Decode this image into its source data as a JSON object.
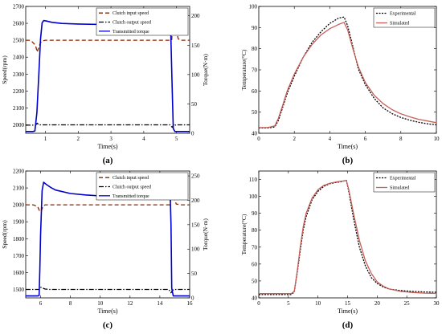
{
  "chart_data": [
    {
      "type": "line",
      "panel_label": "(a)",
      "xlabel": "Time(s)",
      "ylabel": "Speed(rpm)",
      "ylabel_right": "Torque(N·m)",
      "xlim": [
        0.4,
        5.4
      ],
      "ylim": [
        1950,
        2700
      ],
      "ylim_right": [
        0,
        216
      ],
      "xticks": [
        1,
        2,
        3,
        4,
        5
      ],
      "yticks": [
        2000,
        2100,
        2200,
        2300,
        2400,
        2500,
        2600,
        2700
      ],
      "yticks_right": [
        0,
        50,
        100,
        150,
        200
      ],
      "legend_position": "top-right",
      "series": [
        {
          "name": "Clutch input speed",
          "axis": "left",
          "color": "#8b2500",
          "style": "dashed",
          "x": [
            0.4,
            0.5,
            0.6,
            0.7,
            0.75,
            0.8,
            0.85,
            0.9,
            1.0,
            1.2,
            1.5,
            2.0,
            3.0,
            4.0,
            4.7,
            4.85,
            4.9,
            4.95,
            5.0,
            5.05,
            5.1,
            5.2,
            5.4
          ],
          "y": [
            2500,
            2500,
            2490,
            2470,
            2430,
            2460,
            2485,
            2495,
            2500,
            2500,
            2500,
            2500,
            2500,
            2500,
            2500,
            2500,
            2625,
            2590,
            2550,
            2510,
            2500,
            2500,
            2500
          ]
        },
        {
          "name": "Clutch output speed",
          "axis": "left",
          "color": "#000000",
          "style": "dash-dot",
          "x": [
            0.4,
            0.5,
            0.6,
            0.7,
            0.75,
            0.8,
            0.9,
            1.0,
            2.0,
            3.0,
            4.0,
            4.8,
            4.87,
            4.92,
            4.97,
            5.0,
            5.4
          ],
          "y": [
            1998,
            1998,
            1998,
            1998,
            2010,
            2000,
            2000,
            2000,
            2000,
            2000,
            2000,
            2000,
            1985,
            2005,
            1998,
            2000,
            2000
          ]
        },
        {
          "name": "Transmitted torque",
          "axis": "right",
          "color": "#0000cc",
          "style": "solid",
          "x": [
            0.4,
            0.55,
            0.62,
            0.68,
            0.74,
            0.8,
            0.85,
            0.9,
            0.95,
            1.05,
            1.2,
            1.5,
            2.0,
            3.0,
            4.0,
            4.75,
            4.82,
            4.86,
            4.9,
            4.95,
            5.0,
            5.4
          ],
          "y": [
            3,
            3,
            3,
            4,
            35,
            100,
            160,
            188,
            192,
            191,
            189,
            187,
            186,
            185,
            184,
            183,
            182,
            90,
            8,
            3,
            3,
            3
          ]
        }
      ]
    },
    {
      "type": "line",
      "panel_label": "(b)",
      "xlabel": "Time(s)",
      "ylabel": "Temperature(°C)",
      "xlim": [
        0,
        10
      ],
      "ylim": [
        40,
        100
      ],
      "xticks": [
        0,
        2,
        4,
        6,
        8,
        10
      ],
      "yticks": [
        40,
        50,
        60,
        70,
        80,
        90,
        100
      ],
      "legend_position": "top-right",
      "series": [
        {
          "name": "Experimental",
          "color": "#000000",
          "style": "dotted",
          "x": [
            0,
            0.5,
            0.9,
            1.1,
            1.3,
            1.6,
            2.0,
            2.5,
            3.0,
            3.5,
            4.0,
            4.5,
            4.8,
            5.0,
            5.3,
            5.6,
            6.0,
            6.5,
            7.0,
            7.5,
            8.0,
            8.5,
            9.0,
            9.5,
            10.0
          ],
          "y": [
            42.5,
            42.5,
            43,
            46,
            51,
            59,
            67,
            76,
            83,
            88,
            92,
            94.5,
            95,
            91,
            81,
            70.5,
            63,
            56.5,
            52,
            49.3,
            47.5,
            46.2,
            45.2,
            44.5,
            44
          ]
        },
        {
          "name": "Simulated",
          "color": "#c8605a",
          "style": "solid",
          "x": [
            0,
            0.5,
            0.9,
            1.1,
            1.3,
            1.6,
            2.0,
            2.5,
            3.0,
            3.5,
            4.0,
            4.5,
            4.8,
            5.0,
            5.3,
            5.6,
            6.0,
            6.5,
            7.0,
            7.5,
            8.0,
            8.5,
            9.0,
            9.5,
            10.0
          ],
          "y": [
            42.7,
            42.7,
            43.5,
            47,
            52,
            60,
            68,
            76,
            82,
            86.5,
            89.5,
            91.5,
            92.5,
            89,
            80,
            71.5,
            64,
            58,
            54,
            51.2,
            49.2,
            47.8,
            46.6,
            45.8,
            45
          ]
        }
      ]
    },
    {
      "type": "line",
      "panel_label": "(c)",
      "xlabel": "Time(s)",
      "ylabel": "Speed(rpm)",
      "ylabel_right": "Torque(N·m)",
      "xlim": [
        5,
        16
      ],
      "ylim": [
        1450,
        2200
      ],
      "ylim_right": [
        0,
        260
      ],
      "xticks": [
        6,
        8,
        10,
        12,
        14,
        16
      ],
      "yticks": [
        1500,
        1600,
        1700,
        1800,
        1900,
        2000,
        2100,
        2200
      ],
      "yticks_right": [
        0,
        50,
        100,
        150,
        200,
        250
      ],
      "legend_position": "top-right",
      "series": [
        {
          "name": "Clutch input speed",
          "axis": "left",
          "color": "#8b2500",
          "style": "dashed",
          "x": [
            5.0,
            5.5,
            5.8,
            5.95,
            6.05,
            6.15,
            6.3,
            6.6,
            7.0,
            8.0,
            10.0,
            12.0,
            14.0,
            14.6,
            14.7,
            14.75,
            14.85,
            14.95,
            15.1,
            15.4,
            16.0
          ],
          "y": [
            2000,
            2000,
            1990,
            1960,
            1965,
            1990,
            2000,
            2000,
            2000,
            2000,
            2000,
            2000,
            2000,
            2000,
            2000,
            2145,
            2100,
            2040,
            2005,
            2000,
            2000
          ]
        },
        {
          "name": "Clutch output speed",
          "axis": "left",
          "color": "#000000",
          "style": "dash-dot",
          "x": [
            5.0,
            5.5,
            5.9,
            6.0,
            6.1,
            6.3,
            6.6,
            8.0,
            10.0,
            12.0,
            14.0,
            14.6,
            14.75,
            14.85,
            14.95,
            15.1,
            16.0
          ],
          "y": [
            1500,
            1500,
            1500,
            1512,
            1510,
            1502,
            1500,
            1500,
            1500,
            1500,
            1500,
            1500,
            1480,
            1495,
            1500,
            1500,
            1500
          ]
        },
        {
          "name": "Transmitted torque",
          "axis": "right",
          "color": "#0000cc",
          "style": "solid",
          "x": [
            5.0,
            5.8,
            5.9,
            5.95,
            6.0,
            6.1,
            6.2,
            6.4,
            6.7,
            7.0,
            8.0,
            9.0,
            10.0,
            12.0,
            14.0,
            14.6,
            14.7,
            14.75,
            14.8,
            14.9,
            16.0
          ],
          "y": [
            4,
            4,
            5,
            60,
            130,
            220,
            237,
            232,
            226,
            221,
            214,
            211,
            209,
            207,
            205,
            204,
            204,
            150,
            20,
            4,
            4
          ]
        }
      ]
    },
    {
      "type": "line",
      "panel_label": "(d)",
      "xlabel": "Time(s)",
      "ylabel": "Temperature(°C)",
      "xlim": [
        0,
        30
      ],
      "ylim": [
        40,
        115
      ],
      "xticks": [
        0,
        5,
        10,
        15,
        20,
        25,
        30
      ],
      "yticks": [
        40,
        50,
        60,
        70,
        80,
        90,
        100,
        110
      ],
      "legend_position": "top-right",
      "series": [
        {
          "name": "Experimental",
          "color": "#000000",
          "style": "dotted",
          "x": [
            0,
            3,
            5.5,
            6,
            6.5,
            7,
            7.5,
            8,
            9,
            10,
            11,
            12,
            13,
            14,
            14.8,
            15.2,
            16,
            17,
            18,
            19,
            20,
            21,
            22,
            24,
            26,
            28,
            30
          ],
          "y": [
            42,
            42,
            42,
            43.5,
            55,
            68,
            80,
            88,
            98,
            103,
            106,
            107.5,
            108.2,
            108.8,
            109.5,
            103,
            87,
            70,
            59,
            52,
            48.5,
            46.5,
            45.2,
            44.3,
            43.8,
            43.5,
            43.3
          ]
        },
        {
          "name": "Simulated",
          "color": "#c8605a",
          "style": "solid",
          "x": [
            0,
            3,
            5.5,
            6,
            6.5,
            7,
            7.5,
            8,
            9,
            10,
            11,
            12,
            13,
            14,
            14.8,
            15.2,
            16,
            17,
            18,
            19,
            20,
            21,
            22,
            24,
            26,
            28,
            30
          ],
          "y": [
            42.5,
            42.5,
            42.5,
            44,
            56,
            70,
            82,
            90,
            99,
            104,
            106.5,
            107.8,
            108.5,
            109,
            109.3,
            104,
            90,
            74,
            62,
            54.5,
            49.5,
            47,
            45.3,
            43.8,
            43.2,
            42.8,
            42.6
          ]
        }
      ]
    }
  ]
}
